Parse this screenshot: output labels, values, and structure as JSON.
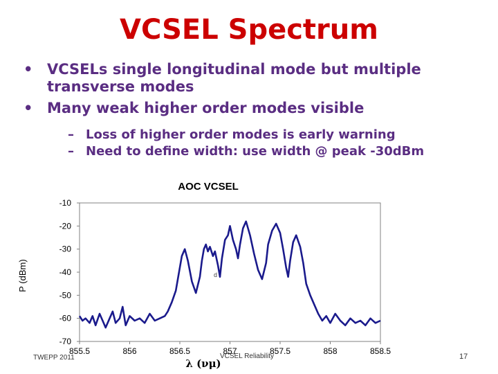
{
  "slide": {
    "title": "VCSEL Spectrum",
    "bullets": [
      "VCSELs single longitudinal mode but multiple transverse modes",
      "Many weak higher order modes visible"
    ],
    "sub_bullets": [
      "Loss of higher order modes is early warning",
      "Need to define width: use width @ peak -30dBm"
    ],
    "footer_left": "TWEPP 2011",
    "footer_center": "VCSEL Reliability",
    "page_number": "17"
  },
  "chart_data": {
    "type": "line",
    "title": "AOC VCSEL",
    "xlabel": "λ (νμ)",
    "ylabel": "P (dBm)",
    "xlim": [
      855.5,
      858.5
    ],
    "ylim": [
      -70,
      -10
    ],
    "x_ticks": [
      "855.5",
      "856",
      "856.5",
      "857",
      "857.5",
      "858",
      "858.5"
    ],
    "y_ticks": [
      "-10",
      "-20",
      "-30",
      "-40",
      "-50",
      "-60",
      "-70"
    ],
    "plot_annotation": "d",
    "line_color": "#1a1a8c",
    "series": [
      {
        "x": [
          855.5,
          855.53,
          855.56,
          855.6,
          855.63,
          855.66,
          855.7,
          855.73,
          855.76,
          855.8,
          855.83,
          855.86,
          855.9,
          855.93,
          855.96,
          856.0,
          856.05,
          856.1,
          856.15,
          856.2,
          856.25,
          856.3,
          856.35,
          856.38,
          856.42,
          856.46,
          856.48,
          856.5,
          856.52,
          856.55,
          856.58,
          856.62,
          856.66,
          856.7,
          856.72,
          856.74,
          856.76,
          856.78,
          856.8,
          856.83,
          856.85,
          856.88,
          856.9,
          856.92,
          856.95,
          856.98,
          857.0,
          857.03,
          857.06,
          857.08,
          857.1,
          857.13,
          857.16,
          857.2,
          857.24,
          857.28,
          857.32,
          857.36,
          857.38,
          857.42,
          857.46,
          857.5,
          857.53,
          857.56,
          857.58,
          857.6,
          857.63,
          857.66,
          857.7,
          857.73,
          857.76,
          857.8,
          857.84,
          857.88,
          857.92,
          857.96,
          858.0,
          858.05,
          858.1,
          858.15,
          858.2,
          858.25,
          858.3,
          858.35,
          858.4,
          858.45,
          858.5
        ],
        "y": [
          -59,
          -61,
          -60,
          -62,
          -59,
          -63,
          -58,
          -61,
          -64,
          -60,
          -57,
          -62,
          -60,
          -55,
          -63,
          -59,
          -61,
          -60,
          -62,
          -58,
          -61,
          -60,
          -59,
          -57,
          -53,
          -48,
          -43,
          -38,
          -33,
          -30,
          -35,
          -44,
          -49,
          -42,
          -35,
          -30,
          -28,
          -31,
          -29,
          -33,
          -31,
          -37,
          -42,
          -34,
          -26,
          -24,
          -20,
          -26,
          -30,
          -34,
          -28,
          -21,
          -18,
          -24,
          -32,
          -39,
          -43,
          -36,
          -28,
          -22,
          -19,
          -23,
          -30,
          -38,
          -42,
          -35,
          -27,
          -24,
          -29,
          -36,
          -45,
          -50,
          -54,
          -58,
          -61,
          -59,
          -62,
          -58,
          -61,
          -63,
          -60,
          -62,
          -61,
          -63,
          -60,
          -62,
          -61
        ]
      }
    ]
  }
}
